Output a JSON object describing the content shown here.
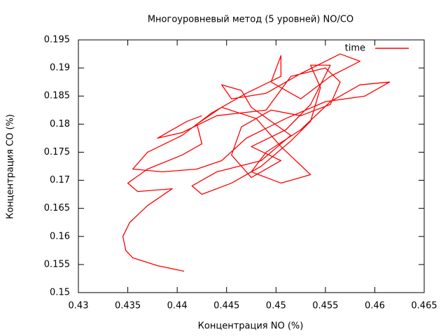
{
  "chart_data": {
    "type": "line",
    "title": "Многоуровневый метод (5 уровней) NO/CO",
    "x_label": "Концентрация NO (%)",
    "y_label": "Концентрация CO (%)",
    "xlim": [
      0.43,
      0.465
    ],
    "ylim": [
      0.15,
      0.195
    ],
    "xticks": [
      0.43,
      0.435,
      0.44,
      0.445,
      0.45,
      0.455,
      0.46,
      0.465
    ],
    "yticks": [
      0.15,
      0.155,
      0.16,
      0.165,
      0.17,
      0.175,
      0.18,
      0.185,
      0.19,
      0.195
    ],
    "legend": "top-right",
    "x": [
      0.4407,
      0.438,
      0.4355,
      0.4348,
      0.4345,
      0.4352,
      0.437,
      0.4395,
      0.436,
      0.435,
      0.437,
      0.4405,
      0.4425,
      0.442,
      0.4445,
      0.448,
      0.4505,
      0.4535,
      0.4505,
      0.4475,
      0.449,
      0.4525,
      0.4555,
      0.4585,
      0.4615,
      0.459,
      0.455,
      0.451,
      0.447,
      0.4445,
      0.442,
      0.4385,
      0.4355,
      0.437,
      0.4405,
      0.4435,
      0.447,
      0.4505,
      0.4505,
      0.4495,
      0.4525,
      0.4555,
      0.4585,
      0.4565,
      0.4525,
      0.449,
      0.4455,
      0.4445,
      0.4465,
      0.4475,
      0.4515,
      0.4485,
      0.444,
      0.4415,
      0.4425,
      0.4455,
      0.4485,
      0.4515,
      0.4535,
      0.4545,
      0.4535,
      0.4555,
      0.4535,
      0.451,
      0.4475,
      0.4505,
      0.4475,
      0.4455,
      0.4465,
      0.4495,
      0.4525,
      0.4555,
      0.4565,
      0.455,
      0.4515,
      0.449,
      0.444,
      0.4405,
      0.438,
      0.441,
      0.4425
    ],
    "series": [
      {
        "name": "time",
        "color": "#ff0000",
        "values": [
          0.1538,
          0.1548,
          0.1562,
          0.1575,
          0.16,
          0.1625,
          0.1655,
          0.1685,
          0.168,
          0.1695,
          0.172,
          0.1745,
          0.1765,
          0.18,
          0.183,
          0.181,
          0.176,
          0.171,
          0.1695,
          0.1715,
          0.175,
          0.179,
          0.184,
          0.187,
          0.1875,
          0.185,
          0.184,
          0.181,
          0.1775,
          0.1735,
          0.172,
          0.1715,
          0.172,
          0.175,
          0.178,
          0.182,
          0.1855,
          0.1885,
          0.1922,
          0.1875,
          0.1845,
          0.1885,
          0.1912,
          0.1925,
          0.189,
          0.1855,
          0.1845,
          0.187,
          0.186,
          0.183,
          0.178,
          0.1735,
          0.1715,
          0.169,
          0.1675,
          0.1695,
          0.1725,
          0.177,
          0.1805,
          0.1865,
          0.1905,
          0.1905,
          0.1835,
          0.179,
          0.176,
          0.1735,
          0.1705,
          0.1745,
          0.1795,
          0.1825,
          0.1815,
          0.1835,
          0.1875,
          0.19,
          0.1885,
          0.1825,
          0.1815,
          0.1785,
          0.1775,
          0.1805,
          0.1815
        ]
      }
    ]
  }
}
